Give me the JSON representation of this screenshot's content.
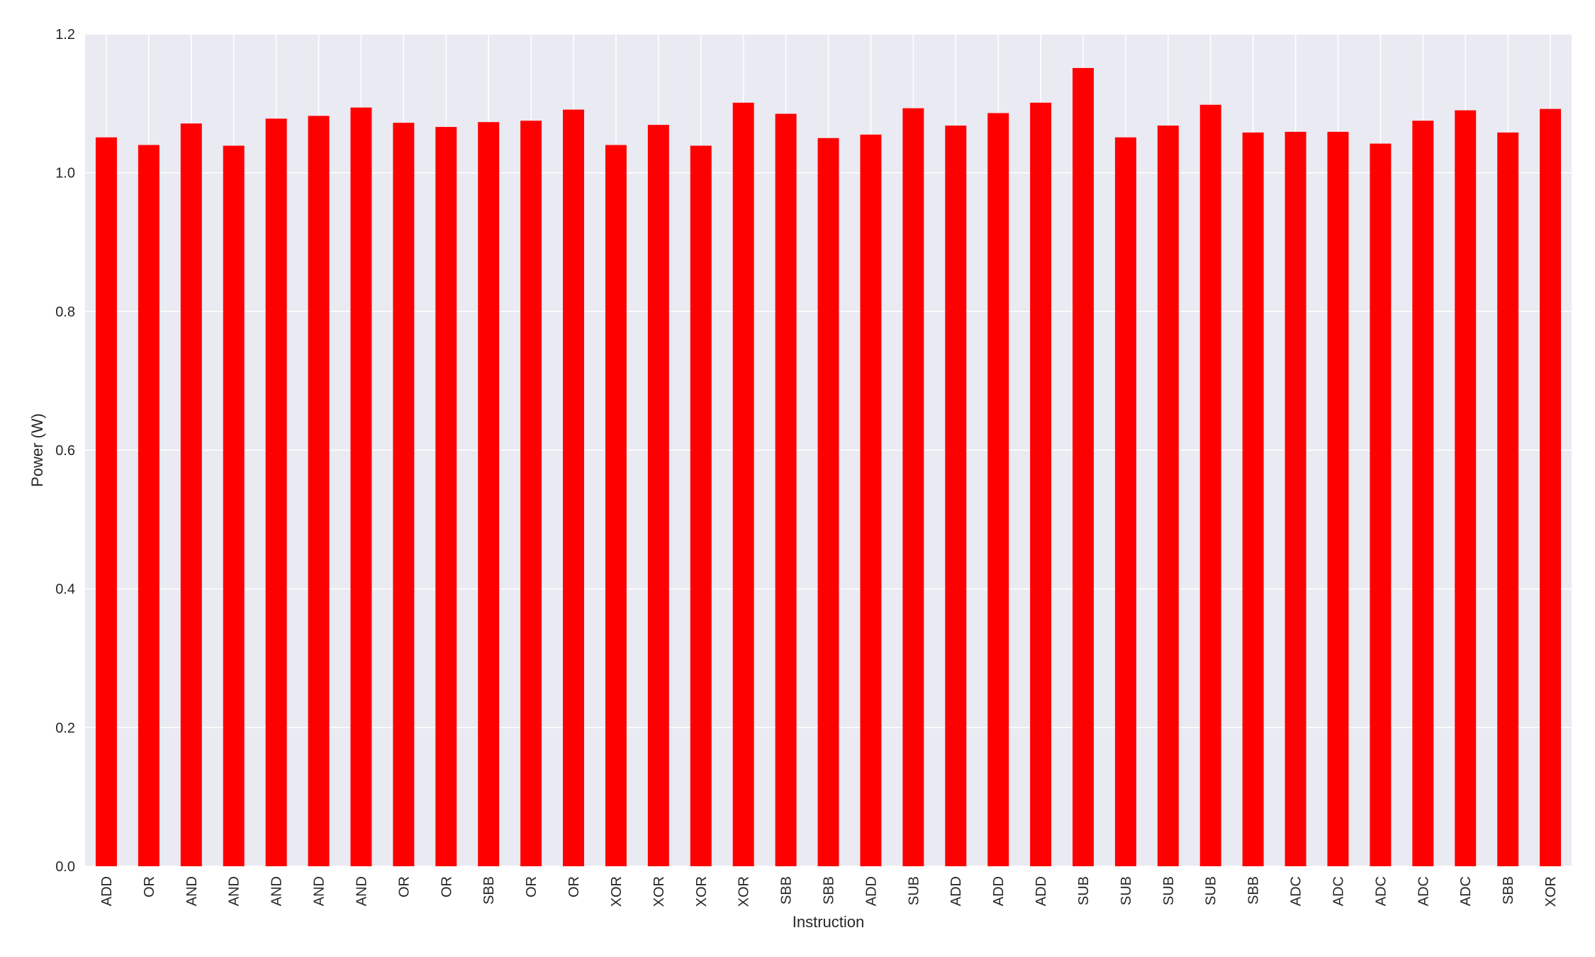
{
  "chart_data": {
    "type": "bar",
    "xlabel": "Instruction",
    "ylabel": "Power (W)",
    "ylim": [
      0,
      1.2
    ],
    "yticks": [
      "0.0",
      "0.2",
      "0.4",
      "0.6",
      "0.8",
      "1.0",
      "1.2"
    ],
    "grid": true,
    "bar_color": "#ff0000",
    "background_color": "#eaeaf2",
    "categories": [
      "ADD",
      "OR",
      "AND",
      "AND",
      "AND",
      "AND",
      "AND",
      "OR",
      "OR",
      "SBB",
      "OR",
      "OR",
      "XOR",
      "XOR",
      "XOR",
      "XOR",
      "SBB",
      "SBB",
      "ADD",
      "SUB",
      "ADD",
      "ADD",
      "ADD",
      "SUB",
      "SUB",
      "SUB",
      "SUB",
      "SBB",
      "ADC",
      "ADC",
      "ADC",
      "ADC",
      "ADC",
      "SBB",
      "XOR"
    ],
    "values": [
      1.051,
      1.04,
      1.071,
      1.039,
      1.078,
      1.082,
      1.094,
      1.072,
      1.066,
      1.073,
      1.075,
      1.091,
      1.04,
      1.069,
      1.039,
      1.101,
      1.085,
      1.05,
      1.055,
      1.093,
      1.068,
      1.086,
      1.101,
      1.151,
      1.051,
      1.068,
      1.098,
      1.058,
      1.059,
      1.059,
      1.042,
      1.075,
      1.09,
      1.058,
      1.092
    ]
  }
}
